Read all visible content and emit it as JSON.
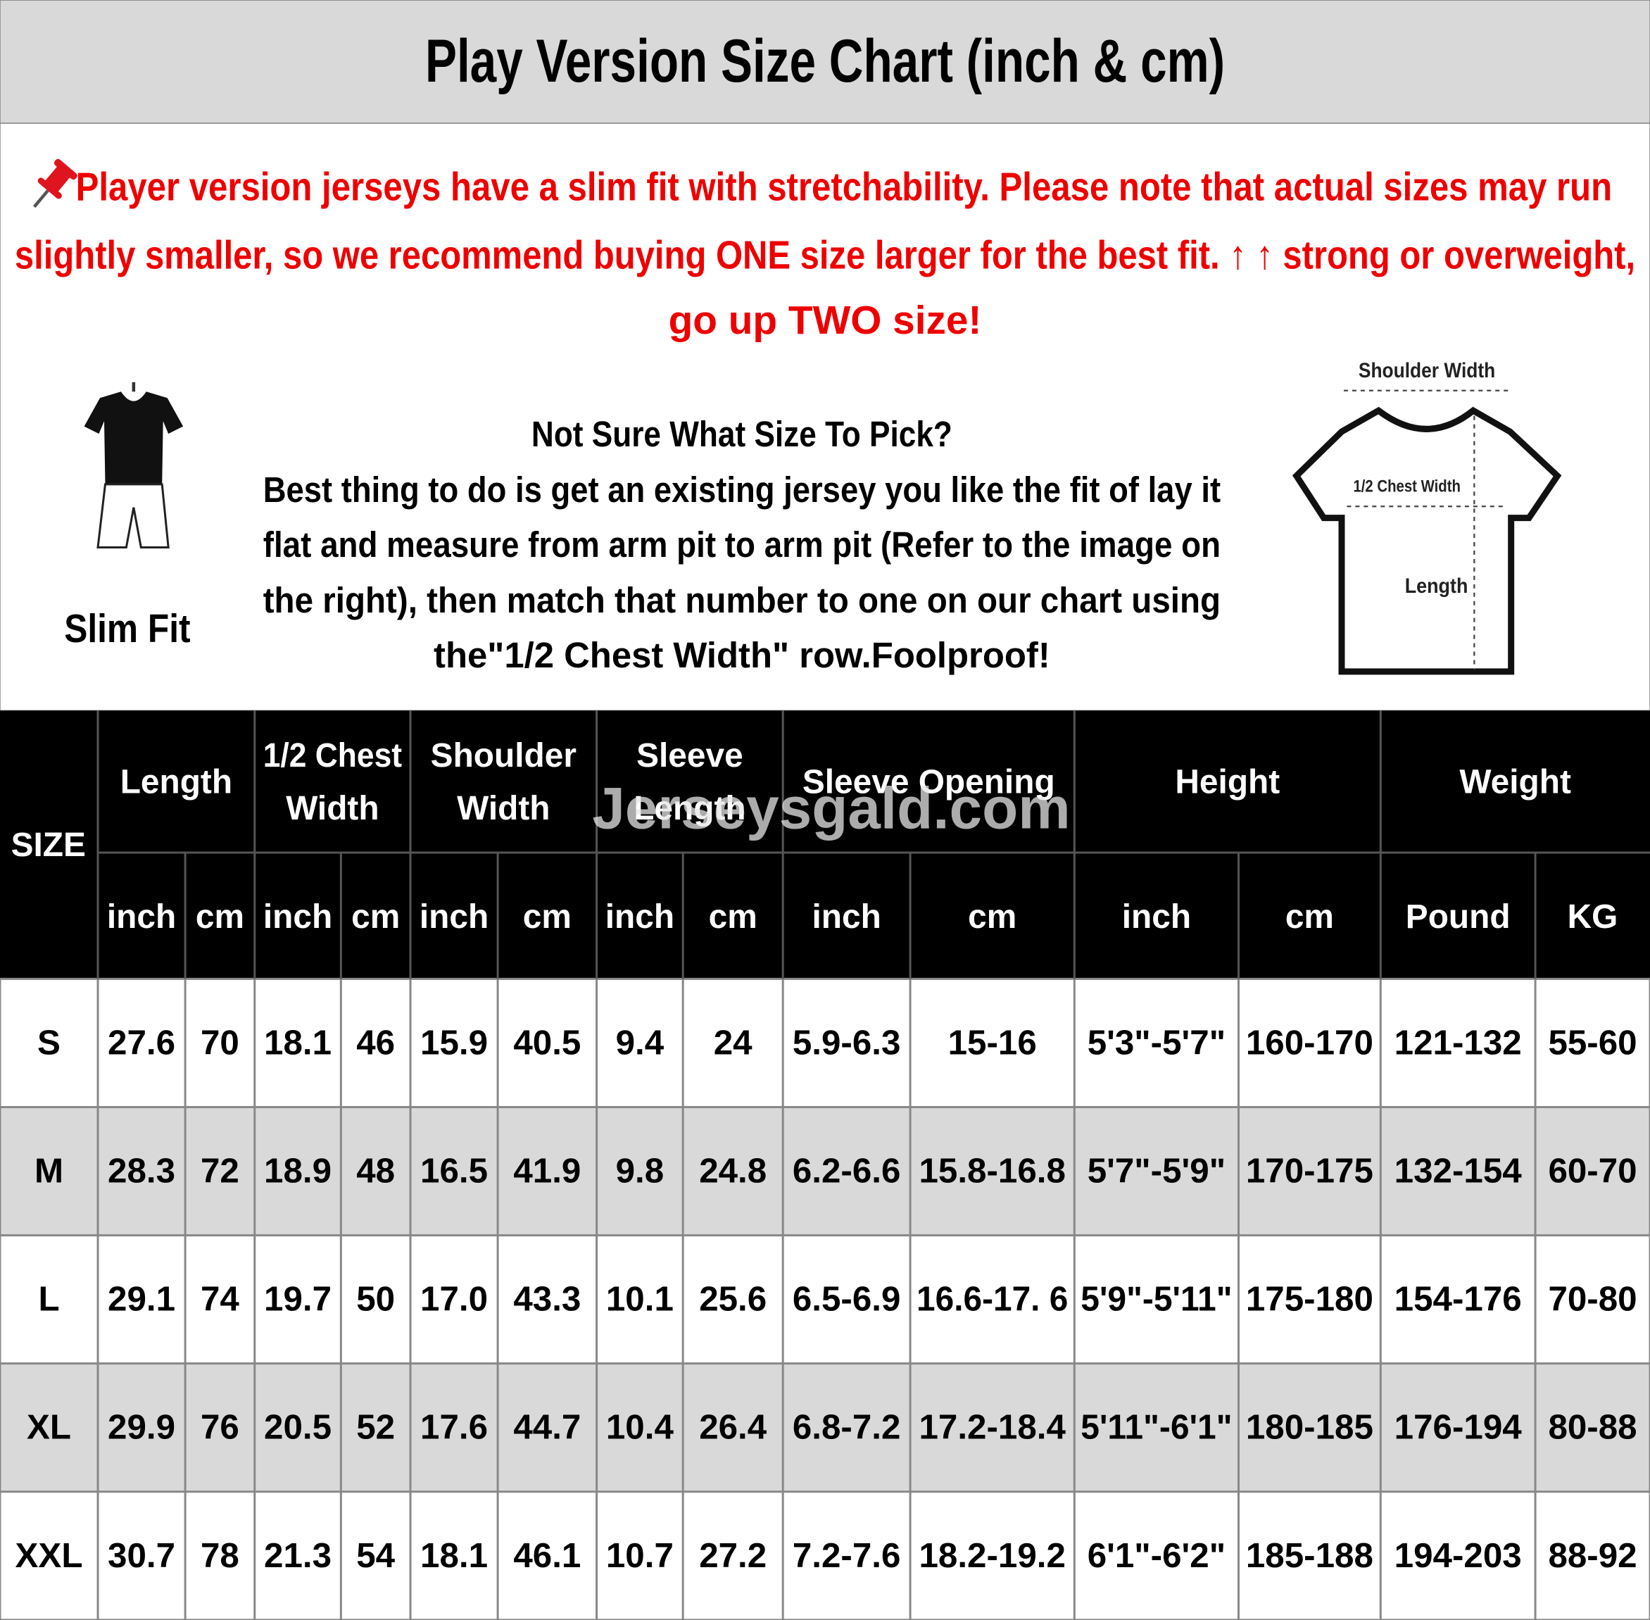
{
  "header": {
    "title": "Play Version Size Chart (inch & cm)"
  },
  "notice": {
    "lines": [
      "Player version jerseys have a slim fit with stretchability. Please note that actual sizes may run",
      "slightly smaller, so we recommend buying ONE size larger for the best fit. ↑ ↑ strong or overweight,",
      "go up TWO size!"
    ]
  },
  "fit": {
    "label": "Slim Fit"
  },
  "advice": {
    "lines": [
      "Not Sure What Size To Pick?",
      "Best thing to do is get an existing jersey you like the fit of lay it",
      "flat and measure from arm pit to arm pit (Refer to the image on",
      "the right), then match that number to one on our chart using",
      "the\"1/2 Chest Width\" row.Foolproof!"
    ]
  },
  "diagram": {
    "shoulder": "Shoulder Width",
    "chest": "1/2 Chest Width",
    "length": "Length"
  },
  "watermark": "Jerseysgald.com",
  "table": {
    "size_header": "SIZE",
    "groups": [
      {
        "lines": [
          "Length"
        ],
        "sub": [
          "inch",
          "cm"
        ]
      },
      {
        "lines": [
          "1/2 Chest",
          "Width"
        ],
        "sub": [
          "inch",
          "cm"
        ]
      },
      {
        "lines": [
          "Shoulder",
          "Width"
        ],
        "sub": [
          "inch",
          "cm"
        ]
      },
      {
        "lines": [
          "Sleeve",
          "Length"
        ],
        "sub": [
          "inch",
          "cm"
        ]
      },
      {
        "lines": [
          "Sleeve Opening"
        ],
        "sub": [
          "inch",
          "cm"
        ]
      },
      {
        "lines": [
          "Height"
        ],
        "sub": [
          "inch",
          "cm"
        ]
      },
      {
        "lines": [
          "Weight"
        ],
        "sub": [
          "Pound",
          "KG"
        ]
      }
    ],
    "rows": [
      [
        "S",
        "27.6",
        "70",
        "18.1",
        "46",
        "15.9",
        "40.5",
        "9.4",
        "24",
        "5.9-6.3",
        "15-16",
        "5'3\"-5'7\"",
        "160-170",
        "121-132",
        "55-60"
      ],
      [
        "M",
        "28.3",
        "72",
        "18.9",
        "48",
        "16.5",
        "41.9",
        "9.8",
        "24.8",
        "6.2-6.6",
        "15.8-16.8",
        "5'7\"-5'9\"",
        "170-175",
        "132-154",
        "60-70"
      ],
      [
        "L",
        "29.1",
        "74",
        "19.7",
        "50",
        "17.0",
        "43.3",
        "10.1",
        "25.6",
        "6.5-6.9",
        "16.6-17. 6",
        "5'9\"-5'11\"",
        "175-180",
        "154-176",
        "70-80"
      ],
      [
        "XL",
        "29.9",
        "76",
        "20.5",
        "52",
        "17.6",
        "44.7",
        "10.4",
        "26.4",
        "6.8-7.2",
        "17.2-18.4",
        "5'11\"-6'1\"",
        "180-185",
        "176-194",
        "80-88"
      ],
      [
        "XXL",
        "30.7",
        "78",
        "21.3",
        "54",
        "18.1",
        "46.1",
        "10.7",
        "27.2",
        "7.2-7.6",
        "18.2-19.2",
        "6'1\"-6'2\"",
        "185-188",
        "194-203",
        "88-92"
      ]
    ]
  }
}
